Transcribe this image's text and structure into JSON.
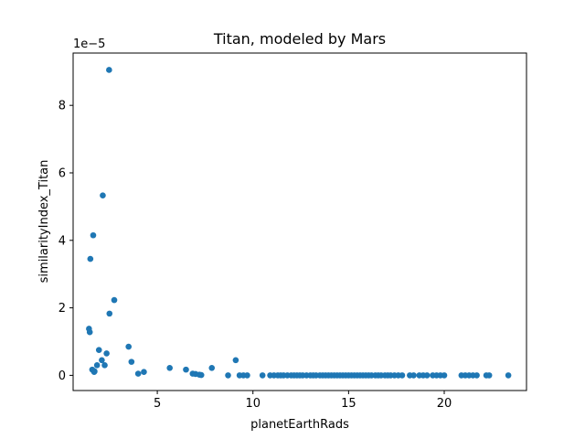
{
  "chart_data": {
    "type": "scatter",
    "title": "Titan, modeled by Mars",
    "xlabel": "planetEarthRads",
    "ylabel": "similarityIndex_Titan",
    "y_offset_label": "1e−5",
    "xlim": [
      0.6,
      24.3
    ],
    "ylim": [
      -0.45,
      9.55
    ],
    "xticks": [
      5,
      10,
      15,
      20
    ],
    "yticks": [
      0,
      2,
      4,
      6,
      8
    ],
    "grid": false,
    "marker_color": "#1f77b4",
    "points": [
      [
        1.43,
        1.38
      ],
      [
        1.47,
        1.28
      ],
      [
        1.5,
        3.45
      ],
      [
        1.6,
        0.17
      ],
      [
        1.65,
        4.15
      ],
      [
        1.7,
        0.1
      ],
      [
        1.72,
        0.12
      ],
      [
        1.85,
        0.3
      ],
      [
        1.95,
        0.75
      ],
      [
        2.1,
        0.45
      ],
      [
        2.15,
        5.33
      ],
      [
        2.25,
        0.3
      ],
      [
        2.35,
        0.65
      ],
      [
        2.48,
        9.05
      ],
      [
        2.5,
        1.83
      ],
      [
        2.75,
        2.23
      ],
      [
        3.5,
        0.85
      ],
      [
        3.65,
        0.4
      ],
      [
        4.0,
        0.05
      ],
      [
        4.3,
        0.1
      ],
      [
        5.65,
        0.22
      ],
      [
        6.5,
        0.17
      ],
      [
        6.85,
        0.05
      ],
      [
        7.0,
        0.04
      ],
      [
        7.2,
        0.02
      ],
      [
        7.3,
        0.01
      ],
      [
        7.85,
        0.22
      ],
      [
        8.7,
        0.0
      ],
      [
        9.1,
        0.45
      ],
      [
        9.3,
        0.0
      ],
      [
        9.5,
        0.0
      ],
      [
        9.7,
        0.0
      ],
      [
        10.5,
        0.0
      ],
      [
        10.9,
        0.0
      ],
      [
        11.1,
        0.0
      ],
      [
        11.3,
        0.0
      ],
      [
        11.45,
        0.0
      ],
      [
        11.6,
        0.0
      ],
      [
        11.8,
        0.0
      ],
      [
        12.0,
        0.0
      ],
      [
        12.15,
        0.0
      ],
      [
        12.3,
        0.0
      ],
      [
        12.45,
        0.0
      ],
      [
        12.6,
        0.0
      ],
      [
        12.8,
        0.0
      ],
      [
        13.0,
        0.0
      ],
      [
        13.15,
        0.0
      ],
      [
        13.3,
        0.0
      ],
      [
        13.5,
        0.0
      ],
      [
        13.65,
        0.0
      ],
      [
        13.8,
        0.0
      ],
      [
        13.95,
        0.0
      ],
      [
        14.1,
        0.0
      ],
      [
        14.25,
        0.0
      ],
      [
        14.4,
        0.0
      ],
      [
        14.55,
        0.0
      ],
      [
        14.7,
        0.0
      ],
      [
        14.85,
        0.0
      ],
      [
        15.0,
        0.0
      ],
      [
        15.15,
        0.0
      ],
      [
        15.3,
        0.0
      ],
      [
        15.45,
        0.0
      ],
      [
        15.6,
        0.0
      ],
      [
        15.75,
        0.0
      ],
      [
        15.9,
        0.0
      ],
      [
        16.05,
        0.0
      ],
      [
        16.2,
        0.0
      ],
      [
        16.4,
        0.0
      ],
      [
        16.55,
        0.0
      ],
      [
        16.7,
        0.0
      ],
      [
        16.9,
        0.0
      ],
      [
        17.05,
        0.0
      ],
      [
        17.2,
        0.0
      ],
      [
        17.4,
        0.0
      ],
      [
        17.6,
        0.0
      ],
      [
        17.8,
        0.0
      ],
      [
        18.2,
        0.0
      ],
      [
        18.4,
        0.0
      ],
      [
        18.7,
        0.0
      ],
      [
        18.9,
        0.0
      ],
      [
        19.1,
        0.0
      ],
      [
        19.4,
        0.0
      ],
      [
        19.6,
        0.0
      ],
      [
        19.8,
        0.0
      ],
      [
        20.0,
        0.0
      ],
      [
        20.9,
        0.0
      ],
      [
        21.1,
        0.0
      ],
      [
        21.3,
        0.0
      ],
      [
        21.5,
        0.0
      ],
      [
        21.7,
        0.0
      ],
      [
        22.2,
        0.0
      ],
      [
        22.35,
        0.0
      ],
      [
        23.35,
        0.0
      ]
    ]
  }
}
